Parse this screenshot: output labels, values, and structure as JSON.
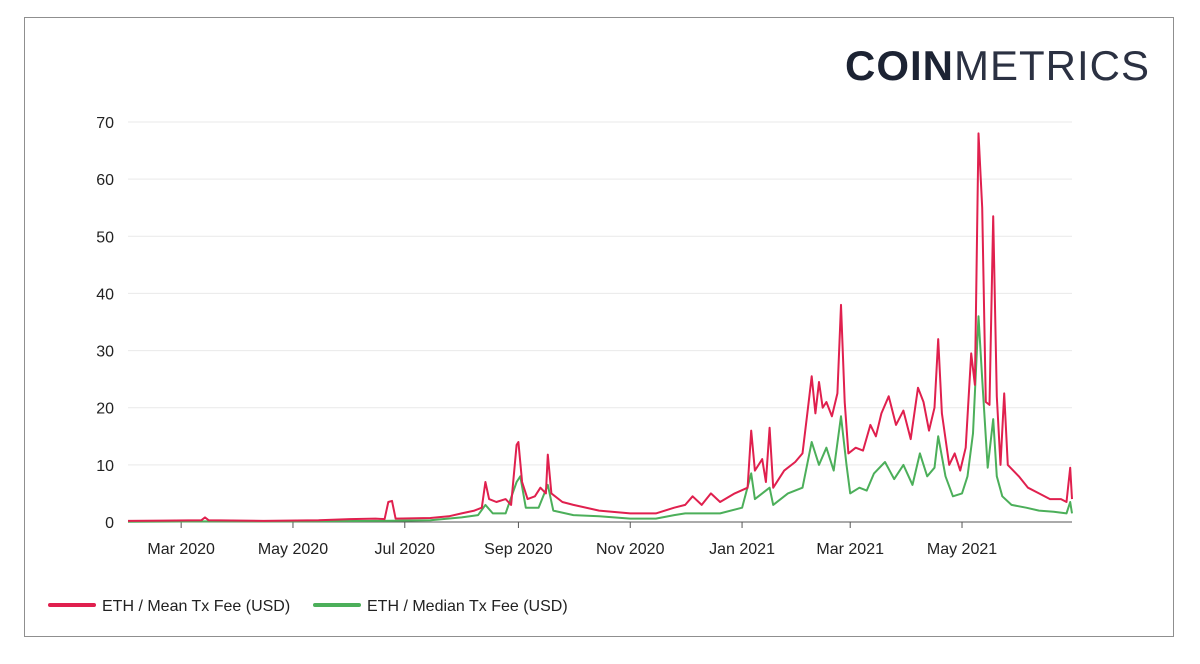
{
  "logo": {
    "bold": "COIN",
    "light": "METRICS"
  },
  "colors": {
    "mean": "#e0204e",
    "median": "#4caf5a",
    "grid": "#e9e9e9",
    "axis": "#555555"
  },
  "chart_data": {
    "type": "line",
    "title": "",
    "xlabel": "",
    "ylabel": "",
    "ylim": [
      0,
      70
    ],
    "yticks": [
      0,
      10,
      20,
      30,
      40,
      50,
      60,
      70
    ],
    "x_ticks": [
      "Mar 2020",
      "May 2020",
      "Jul 2020",
      "Sep 2020",
      "Nov 2020",
      "Jan 2021",
      "Mar 2021",
      "May 2021"
    ],
    "x_start": "2020-02-01",
    "x_end": "2021-06-30",
    "legend_position": "bottom-left",
    "series": [
      {
        "name": "ETH / Mean Tx Fee (USD)",
        "color": "#e0204e",
        "points": [
          [
            "2020-02-01",
            0.2
          ],
          [
            "2020-02-20",
            0.25
          ],
          [
            "2020-03-12",
            0.3
          ],
          [
            "2020-03-14",
            0.8
          ],
          [
            "2020-03-16",
            0.3
          ],
          [
            "2020-04-15",
            0.2
          ],
          [
            "2020-05-15",
            0.3
          ],
          [
            "2020-06-01",
            0.5
          ],
          [
            "2020-06-15",
            0.6
          ],
          [
            "2020-06-20",
            0.5
          ],
          [
            "2020-06-22",
            3.5
          ],
          [
            "2020-06-24",
            3.7
          ],
          [
            "2020-06-26",
            0.6
          ],
          [
            "2020-07-15",
            0.7
          ],
          [
            "2020-07-25",
            1.0
          ],
          [
            "2020-08-01",
            1.5
          ],
          [
            "2020-08-08",
            2.0
          ],
          [
            "2020-08-12",
            2.5
          ],
          [
            "2020-08-14",
            7.0
          ],
          [
            "2020-08-16",
            4.0
          ],
          [
            "2020-08-20",
            3.5
          ],
          [
            "2020-08-25",
            4.0
          ],
          [
            "2020-08-28",
            3.0
          ],
          [
            "2020-08-31",
            13.5
          ],
          [
            "2020-09-01",
            14.0
          ],
          [
            "2020-09-03",
            7.0
          ],
          [
            "2020-09-06",
            4.0
          ],
          [
            "2020-09-10",
            4.5
          ],
          [
            "2020-09-13",
            6.0
          ],
          [
            "2020-09-16",
            5.0
          ],
          [
            "2020-09-17",
            11.8
          ],
          [
            "2020-09-19",
            5.0
          ],
          [
            "2020-09-25",
            3.5
          ],
          [
            "2020-10-01",
            3.0
          ],
          [
            "2020-10-15",
            2.0
          ],
          [
            "2020-11-01",
            1.5
          ],
          [
            "2020-11-15",
            1.5
          ],
          [
            "2020-11-25",
            2.5
          ],
          [
            "2020-12-01",
            3.0
          ],
          [
            "2020-12-05",
            4.5
          ],
          [
            "2020-12-10",
            3.0
          ],
          [
            "2020-12-15",
            5.0
          ],
          [
            "2020-12-20",
            3.5
          ],
          [
            "2020-12-28",
            5.0
          ],
          [
            "2021-01-04",
            6.0
          ],
          [
            "2021-01-06",
            16.0
          ],
          [
            "2021-01-08",
            9.0
          ],
          [
            "2021-01-12",
            11.0
          ],
          [
            "2021-01-14",
            7.0
          ],
          [
            "2021-01-16",
            16.5
          ],
          [
            "2021-01-18",
            6.0
          ],
          [
            "2021-01-24",
            9.0
          ],
          [
            "2021-01-30",
            10.5
          ],
          [
            "2021-02-03",
            12.0
          ],
          [
            "2021-02-06",
            20.0
          ],
          [
            "2021-02-08",
            25.5
          ],
          [
            "2021-02-10",
            19.0
          ],
          [
            "2021-02-12",
            24.5
          ],
          [
            "2021-02-14",
            20.0
          ],
          [
            "2021-02-16",
            21.0
          ],
          [
            "2021-02-19",
            18.5
          ],
          [
            "2021-02-22",
            22.5
          ],
          [
            "2021-02-24",
            38.0
          ],
          [
            "2021-02-26",
            21.0
          ],
          [
            "2021-02-28",
            12.0
          ],
          [
            "2021-03-04",
            13.0
          ],
          [
            "2021-03-08",
            12.5
          ],
          [
            "2021-03-12",
            17.0
          ],
          [
            "2021-03-15",
            15.0
          ],
          [
            "2021-03-18",
            19.0
          ],
          [
            "2021-03-22",
            22.0
          ],
          [
            "2021-03-26",
            17.0
          ],
          [
            "2021-03-30",
            19.5
          ],
          [
            "2021-04-03",
            14.5
          ],
          [
            "2021-04-07",
            23.5
          ],
          [
            "2021-04-10",
            21.0
          ],
          [
            "2021-04-13",
            16.0
          ],
          [
            "2021-04-16",
            20.0
          ],
          [
            "2021-04-18",
            32.0
          ],
          [
            "2021-04-20",
            19.0
          ],
          [
            "2021-04-24",
            10.0
          ],
          [
            "2021-04-27",
            12.0
          ],
          [
            "2021-04-30",
            9.0
          ],
          [
            "2021-05-03",
            13.0
          ],
          [
            "2021-05-06",
            29.5
          ],
          [
            "2021-05-08",
            24.0
          ],
          [
            "2021-05-10",
            68.0
          ],
          [
            "2021-05-12",
            55.0
          ],
          [
            "2021-05-14",
            21.0
          ],
          [
            "2021-05-16",
            20.5
          ],
          [
            "2021-05-18",
            53.5
          ],
          [
            "2021-05-20",
            22.0
          ],
          [
            "2021-05-22",
            10.0
          ],
          [
            "2021-05-24",
            22.5
          ],
          [
            "2021-05-26",
            10.0
          ],
          [
            "2021-06-01",
            8.0
          ],
          [
            "2021-06-06",
            6.0
          ],
          [
            "2021-06-12",
            5.0
          ],
          [
            "2021-06-18",
            4.0
          ],
          [
            "2021-06-24",
            4.0
          ],
          [
            "2021-06-27",
            3.5
          ],
          [
            "2021-06-29",
            9.5
          ],
          [
            "2021-06-30",
            4.0
          ]
        ]
      },
      {
        "name": "ETH / Median Tx Fee (USD)",
        "color": "#4caf5a",
        "points": [
          [
            "2020-02-01",
            0.05
          ],
          [
            "2020-03-15",
            0.1
          ],
          [
            "2020-05-01",
            0.1
          ],
          [
            "2020-06-15",
            0.2
          ],
          [
            "2020-07-15",
            0.3
          ],
          [
            "2020-08-01",
            0.8
          ],
          [
            "2020-08-10",
            1.2
          ],
          [
            "2020-08-14",
            3.0
          ],
          [
            "2020-08-18",
            1.5
          ],
          [
            "2020-08-25",
            1.5
          ],
          [
            "2020-08-31",
            7.0
          ],
          [
            "2020-09-02",
            8.0
          ],
          [
            "2020-09-05",
            2.5
          ],
          [
            "2020-09-12",
            2.5
          ],
          [
            "2020-09-17",
            6.5
          ],
          [
            "2020-09-20",
            2.0
          ],
          [
            "2020-10-01",
            1.2
          ],
          [
            "2020-10-15",
            1.0
          ],
          [
            "2020-11-01",
            0.6
          ],
          [
            "2020-11-15",
            0.6
          ],
          [
            "2020-11-25",
            1.2
          ],
          [
            "2020-12-01",
            1.5
          ],
          [
            "2020-12-10",
            1.5
          ],
          [
            "2020-12-20",
            1.5
          ],
          [
            "2021-01-01",
            2.5
          ],
          [
            "2021-01-06",
            8.5
          ],
          [
            "2021-01-08",
            4.0
          ],
          [
            "2021-01-12",
            5.0
          ],
          [
            "2021-01-16",
            6.0
          ],
          [
            "2021-01-18",
            3.0
          ],
          [
            "2021-01-26",
            5.0
          ],
          [
            "2021-02-03",
            6.0
          ],
          [
            "2021-02-08",
            14.0
          ],
          [
            "2021-02-12",
            10.0
          ],
          [
            "2021-02-16",
            13.0
          ],
          [
            "2021-02-20",
            9.0
          ],
          [
            "2021-02-24",
            18.5
          ],
          [
            "2021-02-27",
            10.0
          ],
          [
            "2021-03-01",
            5.0
          ],
          [
            "2021-03-06",
            6.0
          ],
          [
            "2021-03-10",
            5.5
          ],
          [
            "2021-03-14",
            8.5
          ],
          [
            "2021-03-20",
            10.5
          ],
          [
            "2021-03-25",
            7.5
          ],
          [
            "2021-03-30",
            10.0
          ],
          [
            "2021-04-04",
            6.5
          ],
          [
            "2021-04-08",
            12.0
          ],
          [
            "2021-04-12",
            8.0
          ],
          [
            "2021-04-16",
            9.5
          ],
          [
            "2021-04-18",
            15.0
          ],
          [
            "2021-04-22",
            8.0
          ],
          [
            "2021-04-26",
            4.5
          ],
          [
            "2021-05-01",
            5.0
          ],
          [
            "2021-05-04",
            8.0
          ],
          [
            "2021-05-07",
            15.5
          ],
          [
            "2021-05-10",
            36.0
          ],
          [
            "2021-05-12",
            25.0
          ],
          [
            "2021-05-15",
            9.5
          ],
          [
            "2021-05-18",
            18.0
          ],
          [
            "2021-05-20",
            8.0
          ],
          [
            "2021-05-23",
            4.5
          ],
          [
            "2021-05-28",
            3.0
          ],
          [
            "2021-06-05",
            2.5
          ],
          [
            "2021-06-12",
            2.0
          ],
          [
            "2021-06-20",
            1.8
          ],
          [
            "2021-06-27",
            1.5
          ],
          [
            "2021-06-29",
            3.5
          ],
          [
            "2021-06-30",
            1.5
          ]
        ]
      }
    ]
  }
}
